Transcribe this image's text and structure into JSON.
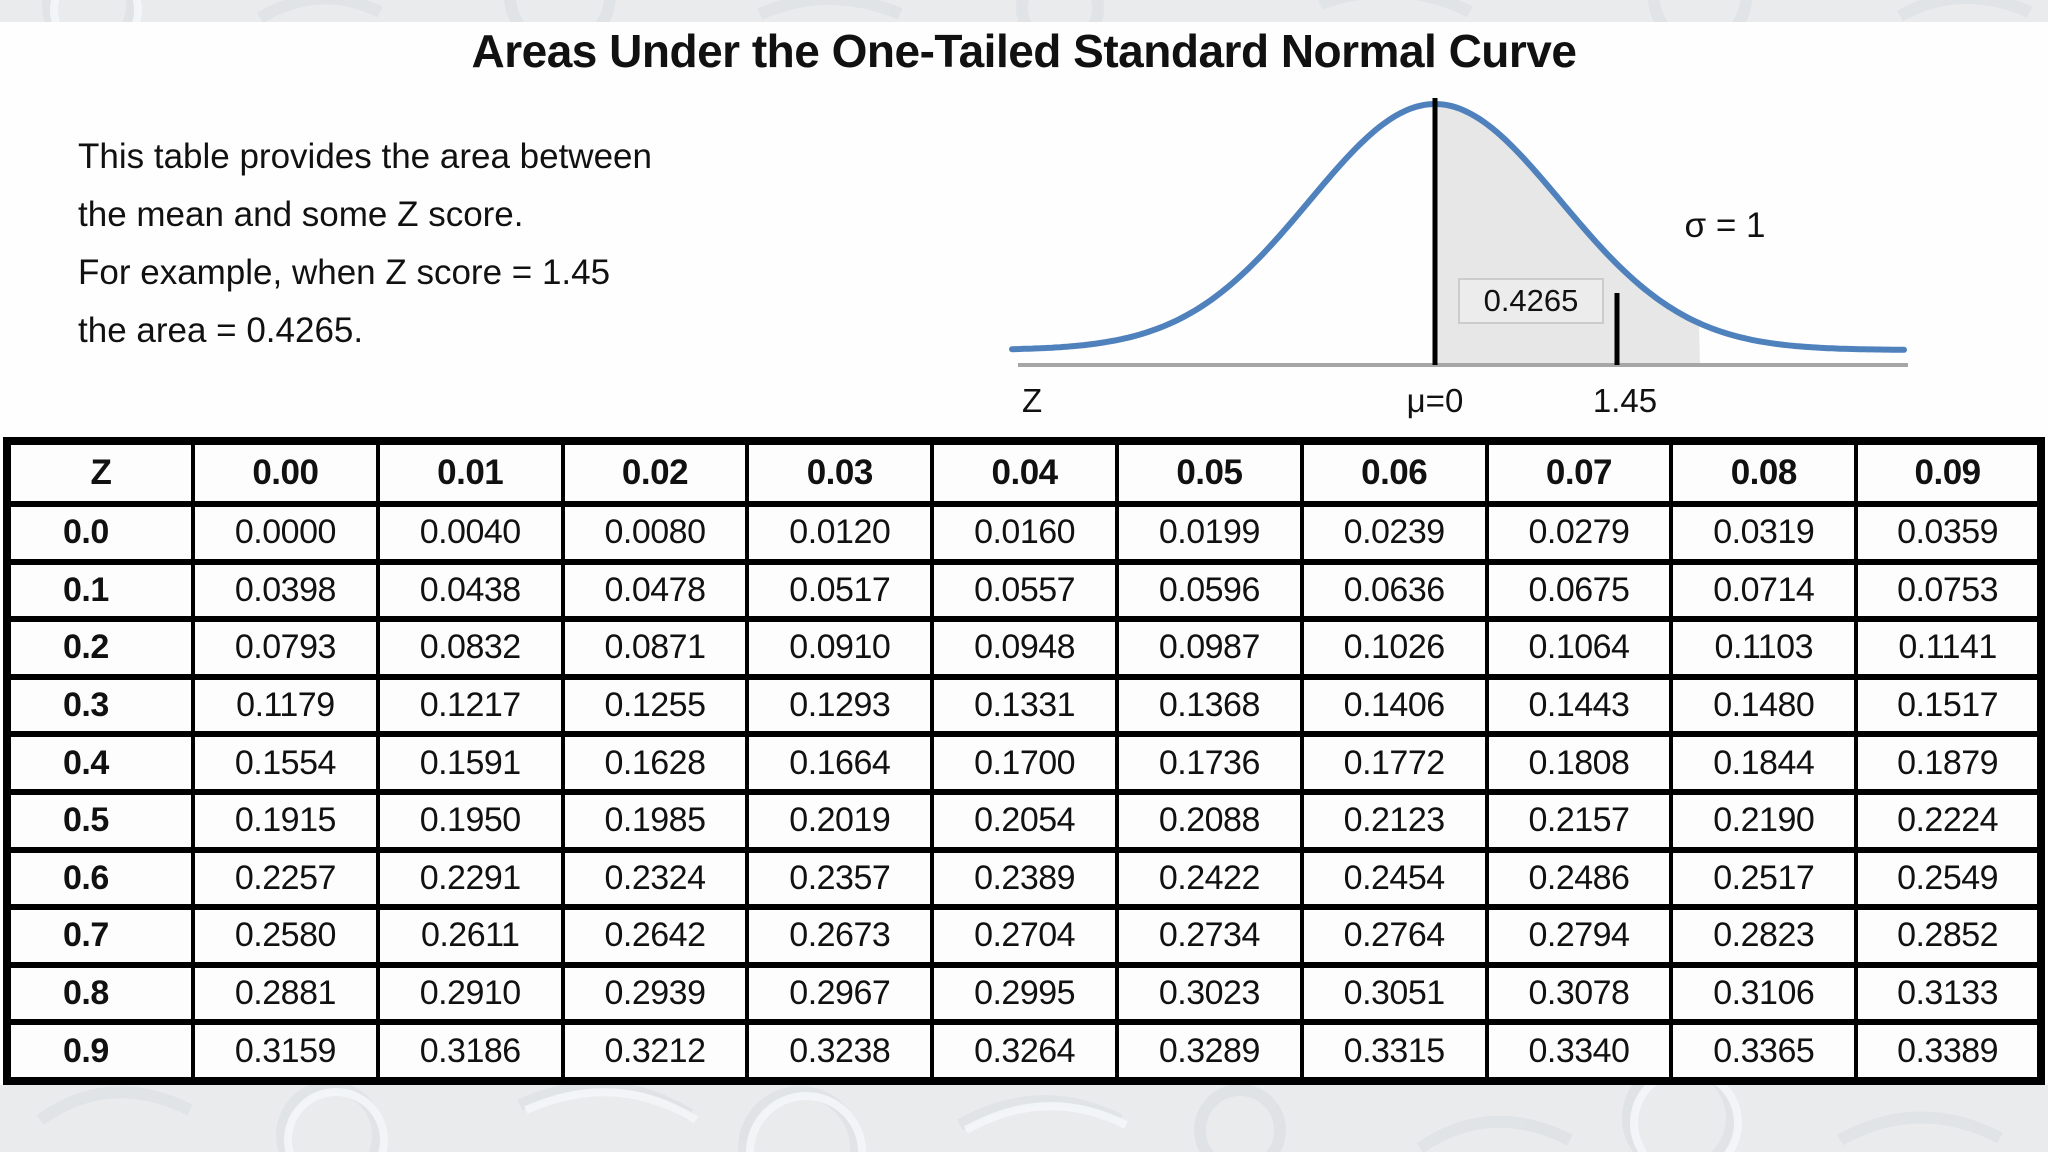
{
  "page": {
    "title": "Areas Under the One-Tailed Standard Normal Curve",
    "intro_lines": [
      "This table provides the area between",
      "the mean and some Z score.",
      "For example, when Z score = 1.45",
      "the area = 0.4265."
    ]
  },
  "figure": {
    "sigma_label": "σ = 1",
    "area_value": "0.4265",
    "x_axis_labels": [
      "Z",
      "μ=0",
      "1.45"
    ],
    "curve_color": "#4f81bd",
    "shade_color": "#e7e7e7",
    "axis_color": "#a6a6a6",
    "marker_color": "#000000"
  },
  "chart_data": {
    "type": "table",
    "title": "Areas Under the One-Tailed Standard Normal Curve",
    "columns": [
      "Z",
      "0.00",
      "0.01",
      "0.02",
      "0.03",
      "0.04",
      "0.05",
      "0.06",
      "0.07",
      "0.08",
      "0.09"
    ],
    "rows": [
      [
        "0.0",
        "0.0000",
        "0.0040",
        "0.0080",
        "0.0120",
        "0.0160",
        "0.0199",
        "0.0239",
        "0.0279",
        "0.0319",
        "0.0359"
      ],
      [
        "0.1",
        "0.0398",
        "0.0438",
        "0.0478",
        "0.0517",
        "0.0557",
        "0.0596",
        "0.0636",
        "0.0675",
        "0.0714",
        "0.0753"
      ],
      [
        "0.2",
        "0.0793",
        "0.0832",
        "0.0871",
        "0.0910",
        "0.0948",
        "0.0987",
        "0.1026",
        "0.1064",
        "0.1103",
        "0.1141"
      ],
      [
        "0.3",
        "0.1179",
        "0.1217",
        "0.1255",
        "0.1293",
        "0.1331",
        "0.1368",
        "0.1406",
        "0.1443",
        "0.1480",
        "0.1517"
      ],
      [
        "0.4",
        "0.1554",
        "0.1591",
        "0.1628",
        "0.1664",
        "0.1700",
        "0.1736",
        "0.1772",
        "0.1808",
        "0.1844",
        "0.1879"
      ],
      [
        "0.5",
        "0.1915",
        "0.1950",
        "0.1985",
        "0.2019",
        "0.2054",
        "0.2088",
        "0.2123",
        "0.2157",
        "0.2190",
        "0.2224"
      ],
      [
        "0.6",
        "0.2257",
        "0.2291",
        "0.2324",
        "0.2357",
        "0.2389",
        "0.2422",
        "0.2454",
        "0.2486",
        "0.2517",
        "0.2549"
      ],
      [
        "0.7",
        "0.2580",
        "0.2611",
        "0.2642",
        "0.2673",
        "0.2704",
        "0.2734",
        "0.2764",
        "0.2794",
        "0.2823",
        "0.2852"
      ],
      [
        "0.8",
        "0.2881",
        "0.2910",
        "0.2939",
        "0.2967",
        "0.2995",
        "0.3023",
        "0.3051",
        "0.3078",
        "0.3106",
        "0.3133"
      ],
      [
        "0.9",
        "0.3159",
        "0.3186",
        "0.3212",
        "0.3238",
        "0.3264",
        "0.3289",
        "0.3315",
        "0.3340",
        "0.3365",
        "0.3389"
      ]
    ]
  }
}
